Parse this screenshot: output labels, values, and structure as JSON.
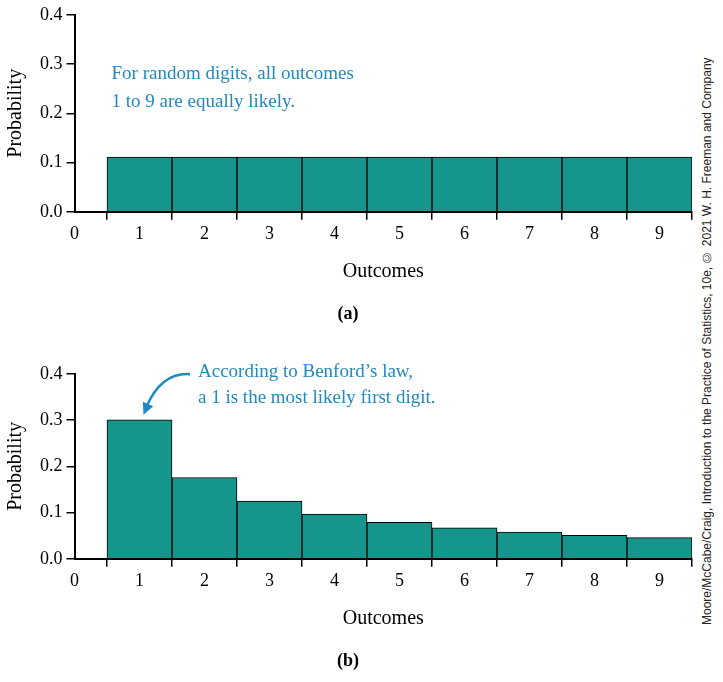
{
  "chart_data": [
    {
      "type": "bar",
      "title": "(a)",
      "x_label": "Outcomes",
      "y_label": "Probability",
      "x": [
        1,
        2,
        3,
        4,
        5,
        6,
        7,
        8,
        9
      ],
      "values": [
        0.111,
        0.111,
        0.111,
        0.111,
        0.111,
        0.111,
        0.111,
        0.111,
        0.111
      ],
      "color": "#16958c",
      "xlim": [
        0,
        9.5
      ],
      "xticks": [
        0,
        1,
        2,
        3,
        4,
        5,
        6,
        7,
        8,
        9
      ],
      "ylim": [
        0,
        0.4
      ],
      "yticks": [
        {
          "value": 0,
          "label": "0.0"
        },
        0.1,
        0.2,
        0.3,
        0.4
      ],
      "grid": false,
      "annotations": [
        {
          "text": "For random digits, all outcomes\n1 to 9 are equally likely."
        }
      ]
    },
    {
      "type": "bar",
      "title": "(b)",
      "x_label": "Outcomes",
      "y_label": "Probability",
      "x": [
        1,
        2,
        3,
        4,
        5,
        6,
        7,
        8,
        9
      ],
      "values": [
        0.301,
        0.176,
        0.125,
        0.097,
        0.079,
        0.067,
        0.058,
        0.051,
        0.046
      ],
      "color": "#16958c",
      "xlim": [
        0,
        9.5
      ],
      "xticks": [
        0,
        1,
        2,
        3,
        4,
        5,
        6,
        7,
        8,
        9
      ],
      "ylim": [
        0,
        0.4
      ],
      "yticks": [
        {
          "value": 0,
          "label": "0.0"
        },
        0.1,
        0.2,
        0.3,
        0.4
      ],
      "grid": false,
      "annotations": [
        {
          "text": "According to Benford’s law,\na 1 is the most likely first digit.",
          "points_to": 1
        }
      ]
    }
  ],
  "credit": "Moore/McCabe/Craig, Introduction to the Practice of Statistics, 10e, © 2021 W. H. Freeman and Company"
}
